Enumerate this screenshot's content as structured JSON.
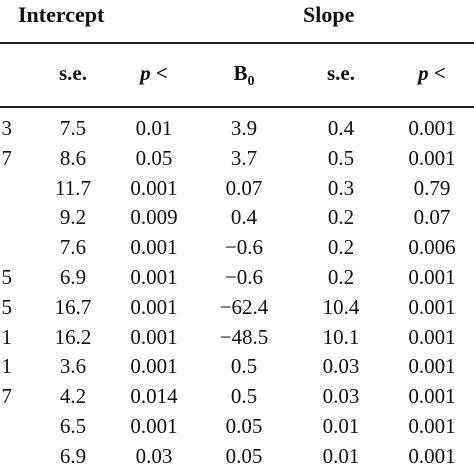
{
  "header": {
    "intercept": "Intercept",
    "slope": "Slope"
  },
  "columns": {
    "se1": "s.e.",
    "p1": "p <",
    "b0_main": "B",
    "b0_sub": "0",
    "se2": "s.e.",
    "p2": "p <"
  },
  "left_edge_digits": [
    "3",
    "7",
    "",
    "",
    "",
    "5",
    "5",
    "1",
    "1",
    "7",
    "",
    ""
  ],
  "rows": [
    {
      "se1": "7.5",
      "p1": "0.01",
      "b0": "3.9",
      "se2": "0.4",
      "p2": "0.001"
    },
    {
      "se1": "8.6",
      "p1": "0.05",
      "b0": "3.7",
      "se2": "0.5",
      "p2": "0.001"
    },
    {
      "se1": "11.7",
      "p1": "0.001",
      "b0": "0.07",
      "se2": "0.3",
      "p2": "0.79"
    },
    {
      "se1": "9.2",
      "p1": "0.009",
      "b0": "0.4",
      "se2": "0.2",
      "p2": "0.07"
    },
    {
      "se1": "7.6",
      "p1": "0.001",
      "b0": "−0.6",
      "se2": "0.2",
      "p2": "0.006"
    },
    {
      "se1": "6.9",
      "p1": "0.001",
      "b0": "−0.6",
      "se2": "0.2",
      "p2": "0.001"
    },
    {
      "se1": "16.7",
      "p1": "0.001",
      "b0": "−62.4",
      "se2": "10.4",
      "p2": "0.001"
    },
    {
      "se1": "16.2",
      "p1": "0.001",
      "b0": "−48.5",
      "se2": "10.1",
      "p2": "0.001"
    },
    {
      "se1": "3.6",
      "p1": "0.001",
      "b0": "0.5",
      "se2": "0.03",
      "p2": "0.001"
    },
    {
      "se1": "4.2",
      "p1": "0.014",
      "b0": "0.5",
      "se2": "0.03",
      "p2": "0.001"
    },
    {
      "se1": "6.5",
      "p1": "0.001",
      "b0": "0.05",
      "se2": "0.01",
      "p2": "0.001"
    },
    {
      "se1": "6.9",
      "p1": "0.03",
      "b0": "0.05",
      "se2": "0.01",
      "p2": "0.001"
    }
  ]
}
